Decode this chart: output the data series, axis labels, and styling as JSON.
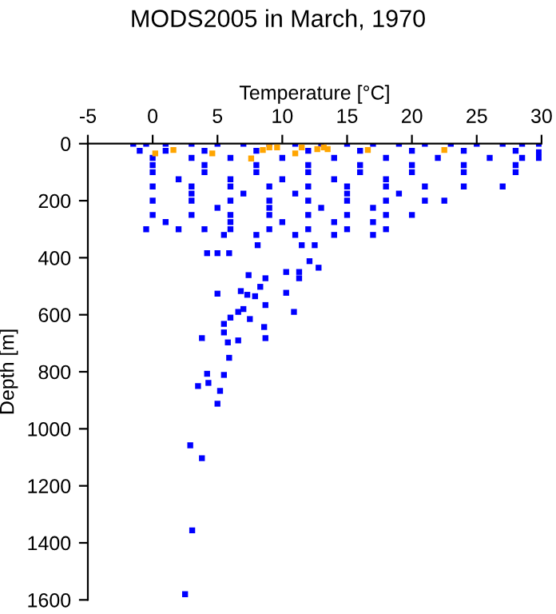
{
  "chart_data": {
    "type": "scatter",
    "title": "MODS2005 in March, 1970",
    "xlabel": "Temperature [°C]",
    "ylabel": "Depth [m]",
    "xlim": [
      -5,
      30
    ],
    "xticks": [
      -5,
      0,
      5,
      10,
      15,
      20,
      25,
      30
    ],
    "ylim": [
      1600,
      0
    ],
    "yticks": [
      0,
      200,
      400,
      600,
      800,
      1000,
      1200,
      1400,
      1600
    ],
    "grid": false,
    "legend": false,
    "marker": "square",
    "series": [
      {
        "color": "#0000ff",
        "x": [
          -1.5,
          -0.5,
          1,
          3,
          5,
          7,
          9,
          11,
          13,
          15,
          17,
          19,
          21,
          23,
          25,
          27,
          28.5,
          29.8,
          -1,
          1,
          4,
          8,
          12,
          16,
          20,
          24,
          28,
          29.8,
          0,
          3,
          6,
          10,
          14,
          18,
          22,
          26,
          28.5,
          29.8,
          0,
          4,
          8,
          12,
          16,
          20,
          24,
          28,
          0,
          4,
          8,
          12,
          16,
          20,
          24,
          28,
          2,
          6,
          10,
          14,
          18,
          0,
          3,
          6,
          9,
          12,
          15,
          18,
          21,
          24,
          27,
          3,
          7,
          11,
          15,
          19,
          0,
          3,
          6,
          9,
          12,
          15,
          18,
          21,
          22.5,
          5,
          9,
          13,
          17,
          0,
          3,
          6,
          9,
          12,
          15,
          18,
          20,
          1,
          6,
          10,
          14,
          17,
          -0.5,
          2,
          4,
          6,
          9,
          12,
          15,
          18,
          5.5,
          8,
          11,
          14,
          17,
          4.2,
          5,
          5.9,
          8.1,
          11.5,
          12.5,
          12.1,
          12.8,
          10.3,
          11.3,
          11.3,
          8.7,
          7.4,
          8.3,
          5,
          6.8,
          7.3,
          7.9,
          10.3,
          8.7,
          6.6,
          7,
          7.5,
          10.9,
          6,
          5.5,
          5.5,
          8.6,
          8.7,
          6.6,
          5.8,
          3.8,
          5.9,
          4.2,
          5.5,
          5.2,
          4.3,
          3.5,
          5,
          2.9,
          3.8,
          3.05,
          2.5
        ],
        "values": [
          0,
          0,
          0,
          0,
          0,
          0,
          0,
          0,
          0,
          0,
          0,
          0,
          0,
          0,
          0,
          0,
          0,
          0,
          25,
          25,
          25,
          25,
          25,
          25,
          25,
          25,
          25,
          30,
          50,
          50,
          50,
          50,
          50,
          50,
          50,
          50,
          50,
          50,
          75,
          75,
          75,
          75,
          75,
          75,
          75,
          75,
          100,
          100,
          100,
          100,
          100,
          100,
          100,
          100,
          125,
          125,
          125,
          125,
          125,
          150,
          150,
          150,
          150,
          150,
          150,
          150,
          150,
          150,
          150,
          175,
          175,
          175,
          175,
          175,
          200,
          200,
          200,
          200,
          200,
          200,
          200,
          200,
          200,
          225,
          225,
          225,
          225,
          250,
          250,
          250,
          250,
          250,
          250,
          250,
          250,
          275,
          275,
          275,
          275,
          275,
          300,
          300,
          300,
          300,
          300,
          300,
          300,
          300,
          320,
          320,
          320,
          320,
          320,
          384,
          384,
          384,
          356,
          356,
          356,
          412,
          435,
          450,
          450,
          472,
          472,
          461,
          502,
          526,
          517,
          530,
          535,
          523,
          566,
          590,
          580,
          615,
          590,
          610,
          632,
          662,
          643,
          682,
          690,
          697,
          682,
          751,
          807,
          811,
          867,
          839,
          850,
          912,
          1058,
          1103,
          1356,
          1580
        ]
      },
      {
        "color": "#ffa500",
        "x": [
          0.2,
          1.6,
          4.6,
          7.6,
          8.5,
          9,
          9.6,
          11,
          11.5,
          12.7,
          13.2,
          13.5,
          16.6,
          22.5
        ],
        "values": [
          34,
          22,
          34,
          52,
          22,
          13,
          13,
          34,
          13,
          19,
          13,
          19,
          22,
          22
        ]
      }
    ]
  }
}
